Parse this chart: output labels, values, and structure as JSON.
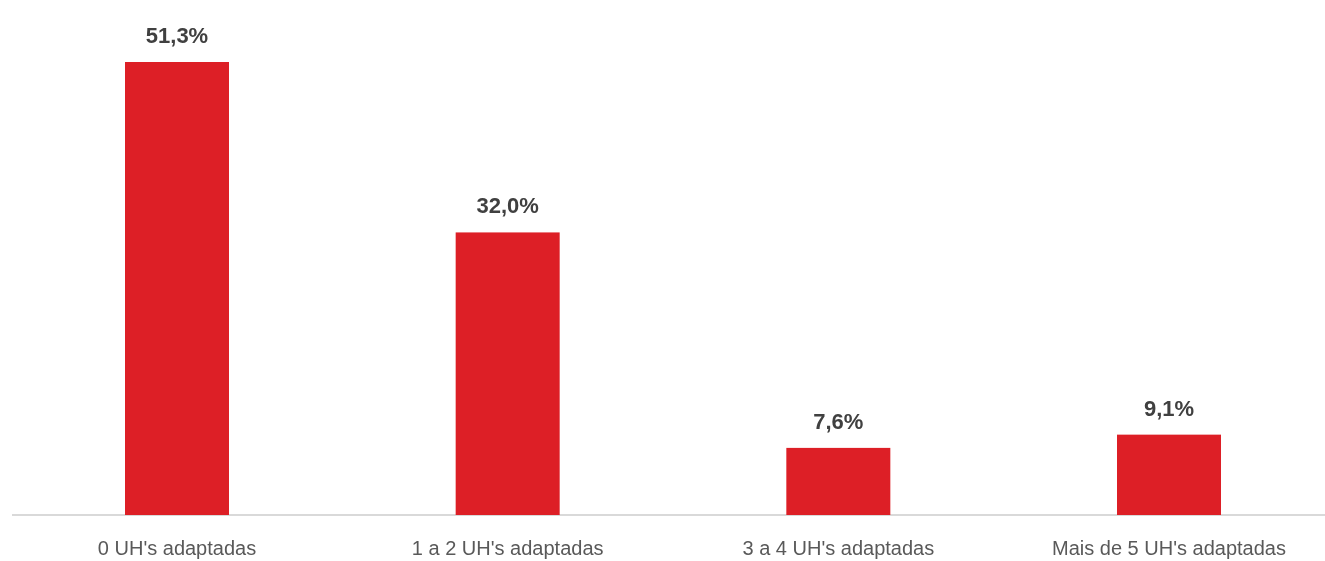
{
  "chart_data": {
    "type": "bar",
    "categories": [
      "0 UH's adaptadas",
      "1 a 2 UH's adaptadas",
      "3 a 4 UH's adaptadas",
      "Mais de 5 UH's adaptadas"
    ],
    "values": [
      51.3,
      32.0,
      7.6,
      9.1
    ],
    "color": "#dd1f26",
    "value_labels": [
      "51,3%",
      "32,0%",
      "7,6%",
      "9,1%"
    ]
  }
}
